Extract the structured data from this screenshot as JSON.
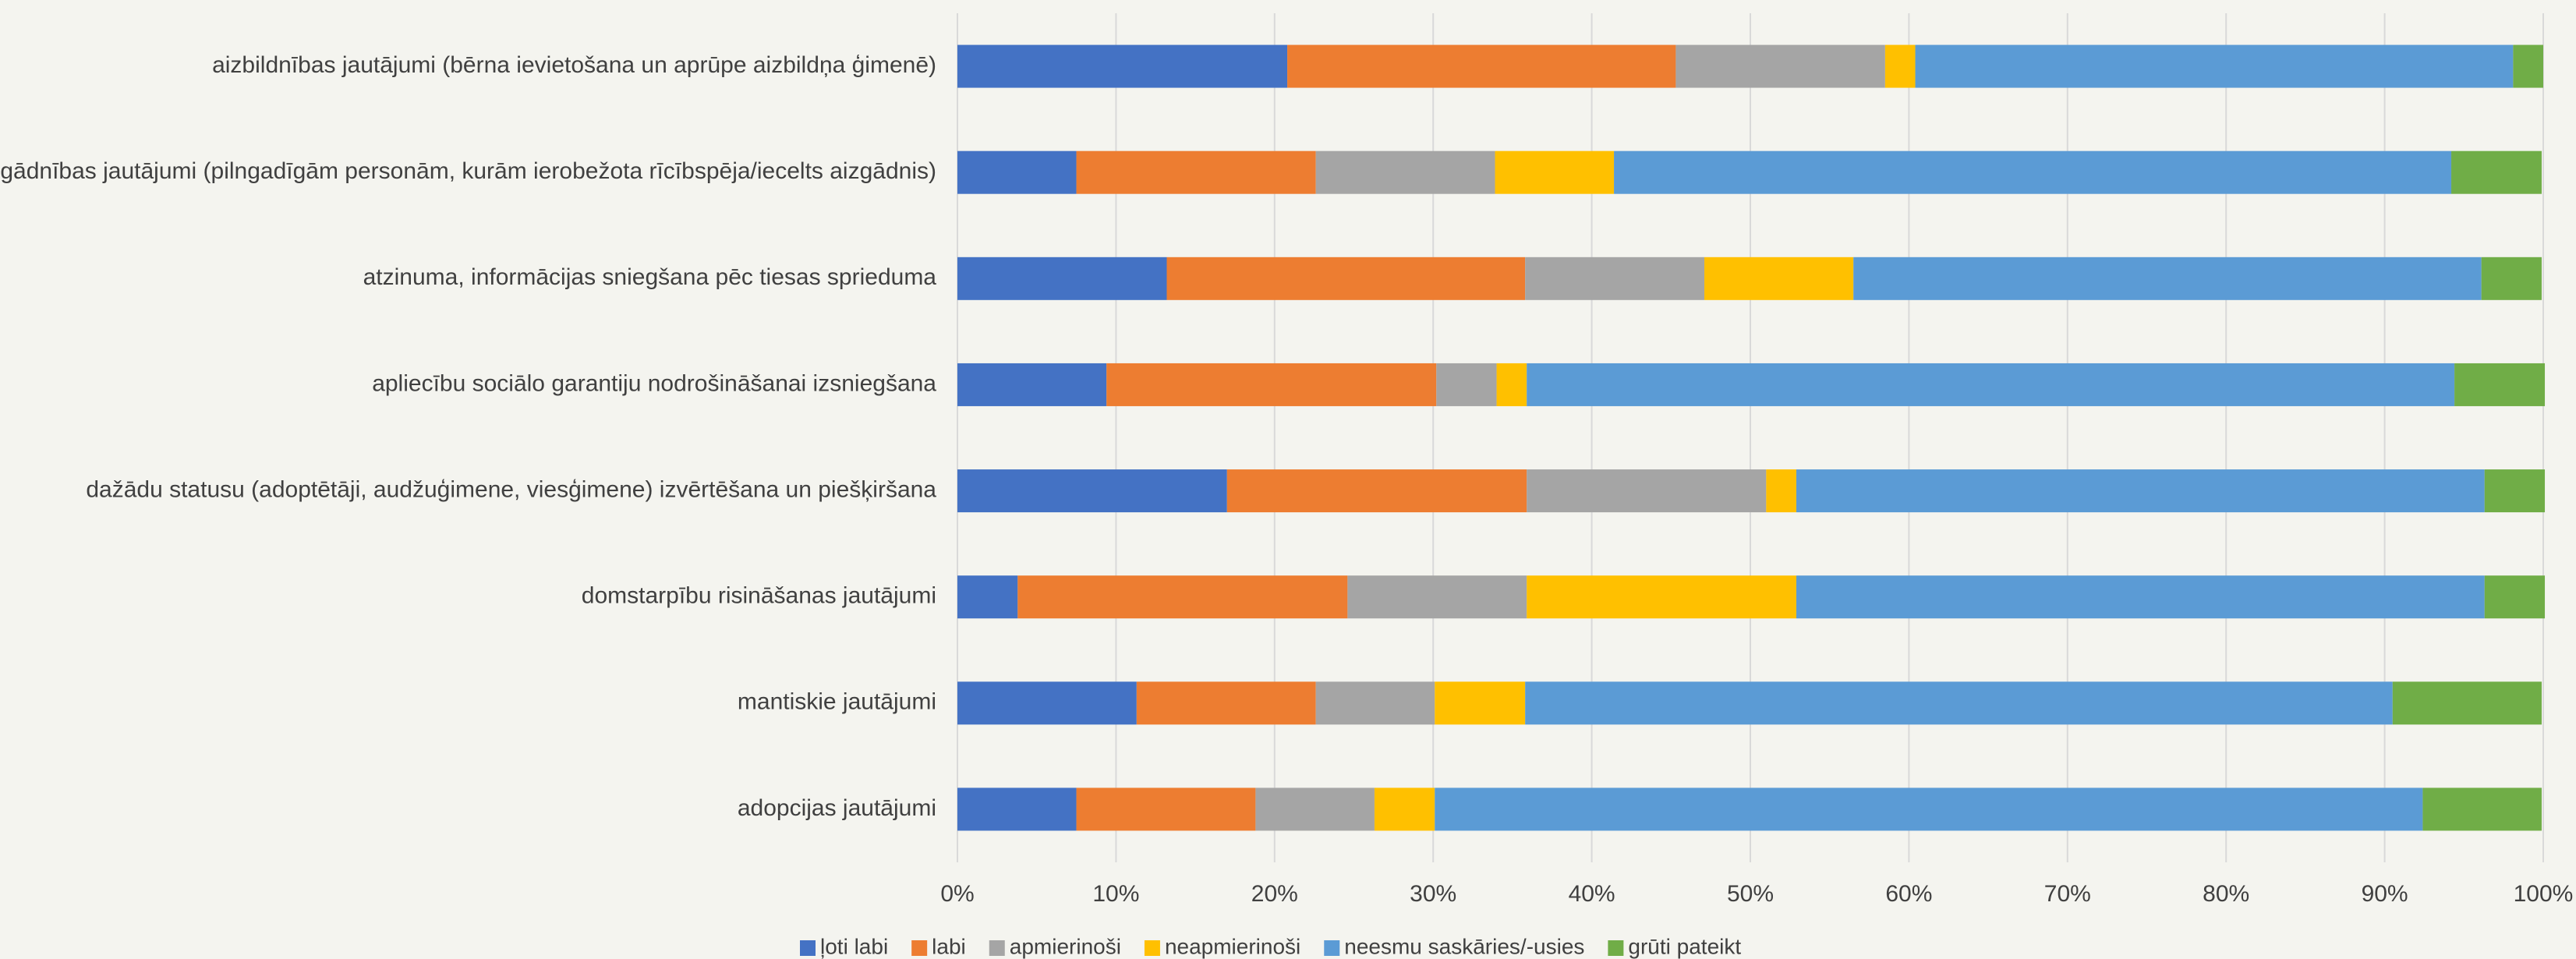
{
  "chart_data": {
    "type": "stacked-bar-horizontal",
    "categories": [
      "aizbildnības jautājumi (bērna ievietošana un aprūpe aizbildņa ģimenē)",
      "aizgādnības jautājumi (pilngadīgām personām, kurām ierobežota rīcībspēja/iecelts aizgādnis)",
      "atzinuma, informācijas sniegšana pēc tiesas sprieduma",
      "apliecību sociālo garantiju nodrošināšanai izsniegšana",
      "dažādu statusu (adoptētāji, audžuģimene, viesģimene) izvērtēšana un piešķiršana",
      "domstarpību risināšanas jautājumi",
      "mantiskie jautājumi",
      "adopcijas jautājumi"
    ],
    "series": [
      {
        "name": "ļoti labi",
        "color": "#4472c4",
        "values": [
          20.8,
          7.5,
          13.2,
          9.4,
          17.0,
          3.8,
          11.3,
          7.5
        ]
      },
      {
        "name": "labi",
        "color": "#ed7d31",
        "values": [
          24.5,
          15.1,
          22.6,
          20.8,
          18.9,
          20.8,
          11.3,
          11.3
        ]
      },
      {
        "name": "apmierinoši",
        "color": "#a5a5a5",
        "values": [
          13.2,
          11.3,
          11.3,
          3.8,
          15.1,
          11.3,
          7.5,
          7.5
        ]
      },
      {
        "name": "neapmierinoši",
        "color": "#ffc000",
        "values": [
          1.9,
          7.5,
          9.4,
          1.9,
          1.9,
          17.0,
          5.7,
          3.8
        ]
      },
      {
        "name": "neesmu saskāries/-usies",
        "color": "#5b9bd5",
        "values": [
          37.7,
          52.8,
          39.6,
          58.5,
          43.4,
          43.4,
          54.7,
          62.3
        ]
      },
      {
        "name": "grūti pateikt",
        "color": "#70ad47",
        "values": [
          1.9,
          5.7,
          3.8,
          5.7,
          3.8,
          3.8,
          9.4,
          7.5
        ]
      }
    ],
    "xlim": [
      0,
      100
    ],
    "xticks": [
      {
        "value": 0,
        "label": "0%"
      },
      {
        "value": 10,
        "label": "10%"
      },
      {
        "value": 20,
        "label": "20%"
      },
      {
        "value": 30,
        "label": "30%"
      },
      {
        "value": 40,
        "label": "40%"
      },
      {
        "value": 50,
        "label": "50%"
      },
      {
        "value": 60,
        "label": "60%"
      },
      {
        "value": 70,
        "label": "70%"
      },
      {
        "value": 80,
        "label": "80%"
      },
      {
        "value": 90,
        "label": "90%"
      },
      {
        "value": 100,
        "label": "100%"
      }
    ],
    "grid": true,
    "legend": "bottom"
  }
}
